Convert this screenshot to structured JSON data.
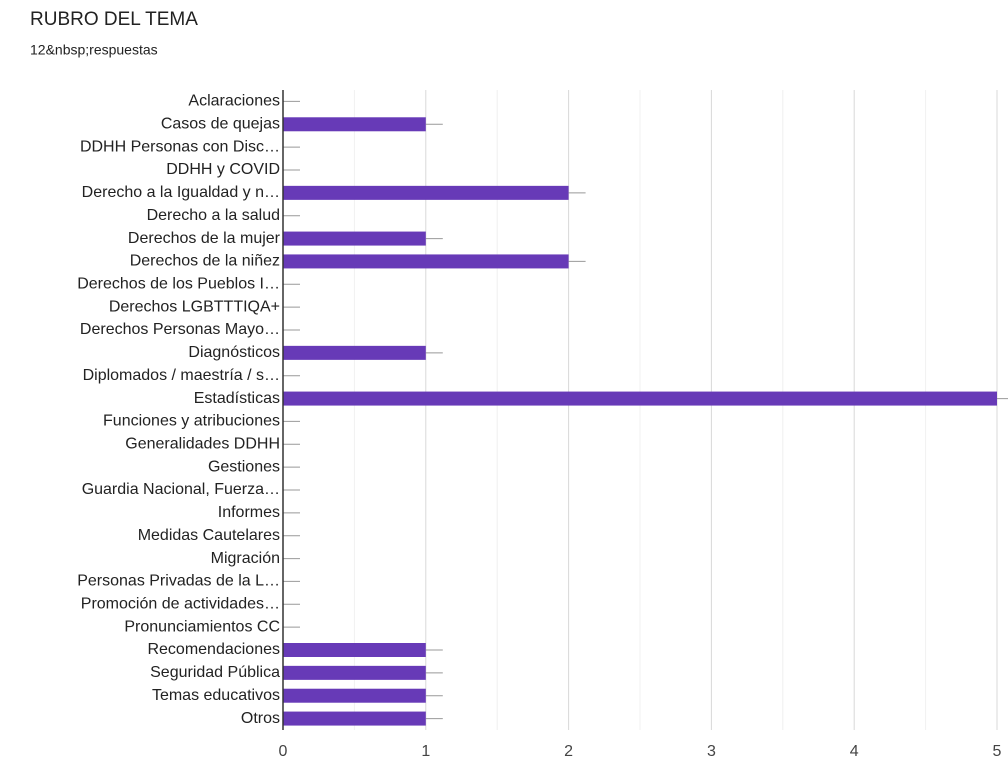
{
  "chart_data": {
    "type": "bar",
    "orientation": "horizontal",
    "title": "RUBRO DEL TEMA",
    "subtitle": "12&nbsp;respuestas",
    "categories": [
      "Aclaraciones",
      "Casos de quejas",
      "DDHH Personas con Disc…",
      "DDHH y COVID",
      "Derecho a la Igualdad y n…",
      "Derecho a la salud",
      "Derechos de la mujer",
      "Derechos de la niñez",
      "Derechos de los Pueblos I…",
      "Derechos LGBTTTIQA+",
      "Derechos Personas Mayo…",
      "Diagnósticos",
      "Diplomados / maestría / s…",
      "Estadísticas",
      "Funciones y atribuciones",
      "Generalidades DDHH",
      "Gestiones",
      "Guardia Nacional, Fuerza…",
      "Informes",
      "Medidas Cautelares",
      "Migración",
      "Personas Privadas de la L…",
      "Promoción de actividades…",
      "Pronunciamientos CC",
      "Recomendaciones",
      "Seguridad Pública",
      "Temas educativos",
      "Otros"
    ],
    "values": [
      0,
      1,
      0,
      0,
      2,
      0,
      1,
      2,
      0,
      0,
      0,
      1,
      0,
      5,
      0,
      0,
      0,
      0,
      0,
      0,
      0,
      0,
      0,
      0,
      1,
      1,
      1,
      1
    ],
    "color": "#673ab7",
    "xlim": [
      0,
      5
    ],
    "xticks": [
      0,
      1,
      2,
      3,
      4,
      5
    ],
    "x_minor_grid": [
      0.5,
      1.5,
      2.5,
      3.5,
      4.5
    ],
    "grid": true
  }
}
